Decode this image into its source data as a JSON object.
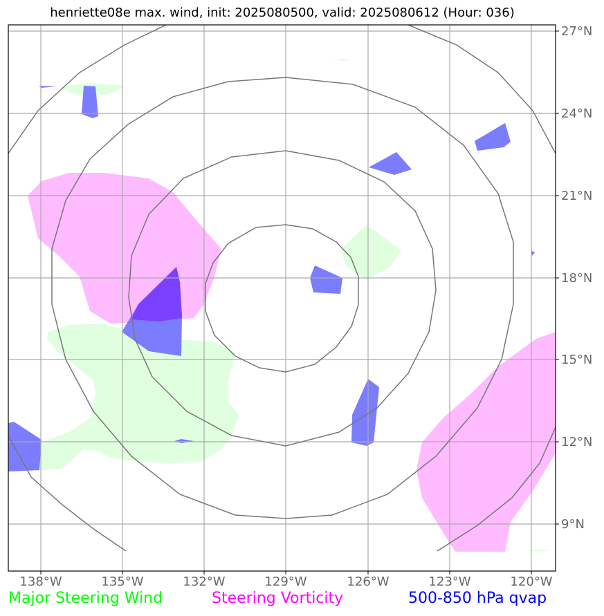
{
  "title": "henriette08e max. wind, init: 2025080500, valid: 2025080612 (Hour: 036)",
  "axes": {
    "lat_labels": [
      "27°N",
      "24°N",
      "21°N",
      "18°N",
      "15°N",
      "12°N",
      "9°N"
    ],
    "lon_labels": [
      "138°W",
      "135°W",
      "132°W",
      "129°W",
      "126°W",
      "123°W",
      "120°W"
    ]
  },
  "legend": {
    "wind": "Major Steering Wind",
    "vorticity": "Steering Vorticity",
    "qvap": "500-850 hPa qvap"
  },
  "colors": {
    "wind": "#00ff00",
    "vorticity": "#ff00ff",
    "qvap": "#0000ff",
    "wind_fill": "#ddffdd",
    "vorticity_fill": "#ffbbff",
    "qvap_fill": "#7b7bff"
  }
}
